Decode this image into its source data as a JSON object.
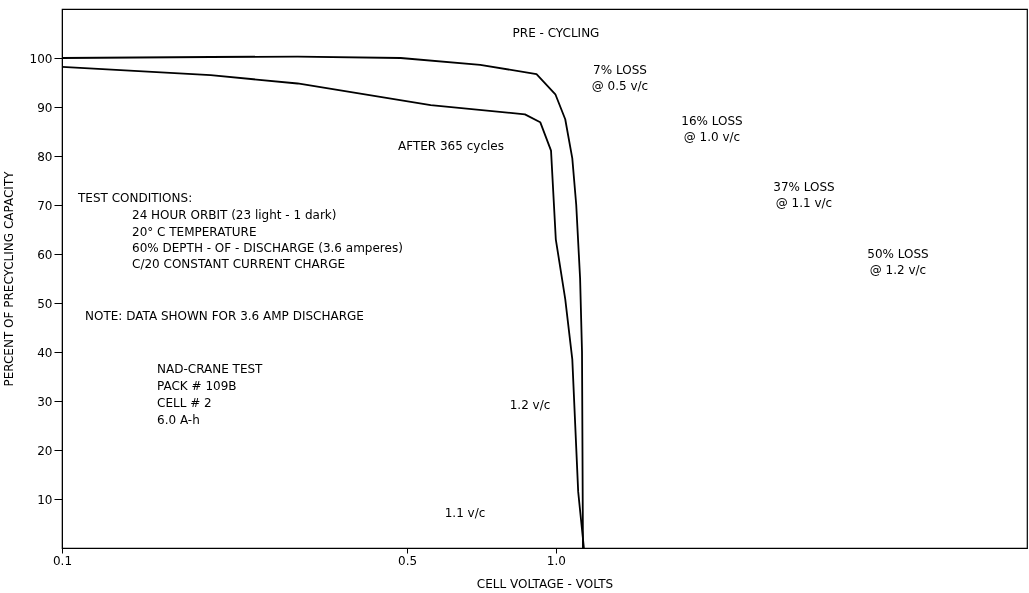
{
  "chart_data": {
    "type": "line",
    "xlabel": "CELL VOLTAGE - VOLTS",
    "ylabel": "PERCENT OF PRECYCLING CAPACITY",
    "log": "x",
    "xlim": [
      0.1,
      9
    ],
    "xticks": [
      0.1,
      0.5,
      {
        "value": 1,
        "label": "1.0"
      }
    ],
    "ylim": [
      0,
      110
    ],
    "yticks": [
      10,
      20,
      30,
      40,
      50,
      60,
      70,
      80,
      90,
      100
    ],
    "grid": false,
    "legend": false,
    "series": [
      {
        "name": "PRE - CYCLING",
        "color": "#000000",
        "x": [
          0.1,
          0.2,
          0.3,
          0.485,
          0.703,
          0.914,
          0.998,
          1.045,
          1.08,
          1.1,
          1.12,
          1.13,
          1.135
        ],
        "values": [
          100,
          100.2,
          100.3,
          100,
          98.6,
          96.7,
          92.6,
          87.5,
          79.5,
          70,
          55,
          40,
          0
        ]
      },
      {
        "name": "AFTER 365 cycles",
        "color": "#000000",
        "x": [
          0.1,
          0.2,
          0.3,
          0.558,
          0.866,
          0.93,
          0.978,
          1.0,
          1.045,
          1.08,
          1.11,
          1.14
        ],
        "values": [
          98.2,
          96.5,
          94.8,
          90.4,
          88.5,
          86.9,
          81.1,
          63,
          50.8,
          38.5,
          11.5,
          0
        ]
      }
    ],
    "annotations": [
      "TEST CONDITIONS:",
      "24 HOUR ORBIT (23 light - 1 dark)",
      "20° C TEMPERATURE",
      "60% DEPTH - OF - DISCHARGE (3.6 amperes)",
      "C/20 CONSTANT CURRENT CHARGE",
      "NOTE: DATA SHOWN FOR 3.6 AMP DISCHARGE",
      "NAD-CRANE TEST",
      "PACK # 109B",
      "CELL # 2",
      "6.0 A-h",
      "7% LOSS",
      "@ 0.5 v/c",
      "16% LOSS",
      "@ 1.0 v/c",
      "37% LOSS",
      "@ 1.1 v/c",
      "50% LOSS",
      "@ 1.2 v/c",
      "1.2 v/c",
      "1.1 v/c"
    ]
  }
}
